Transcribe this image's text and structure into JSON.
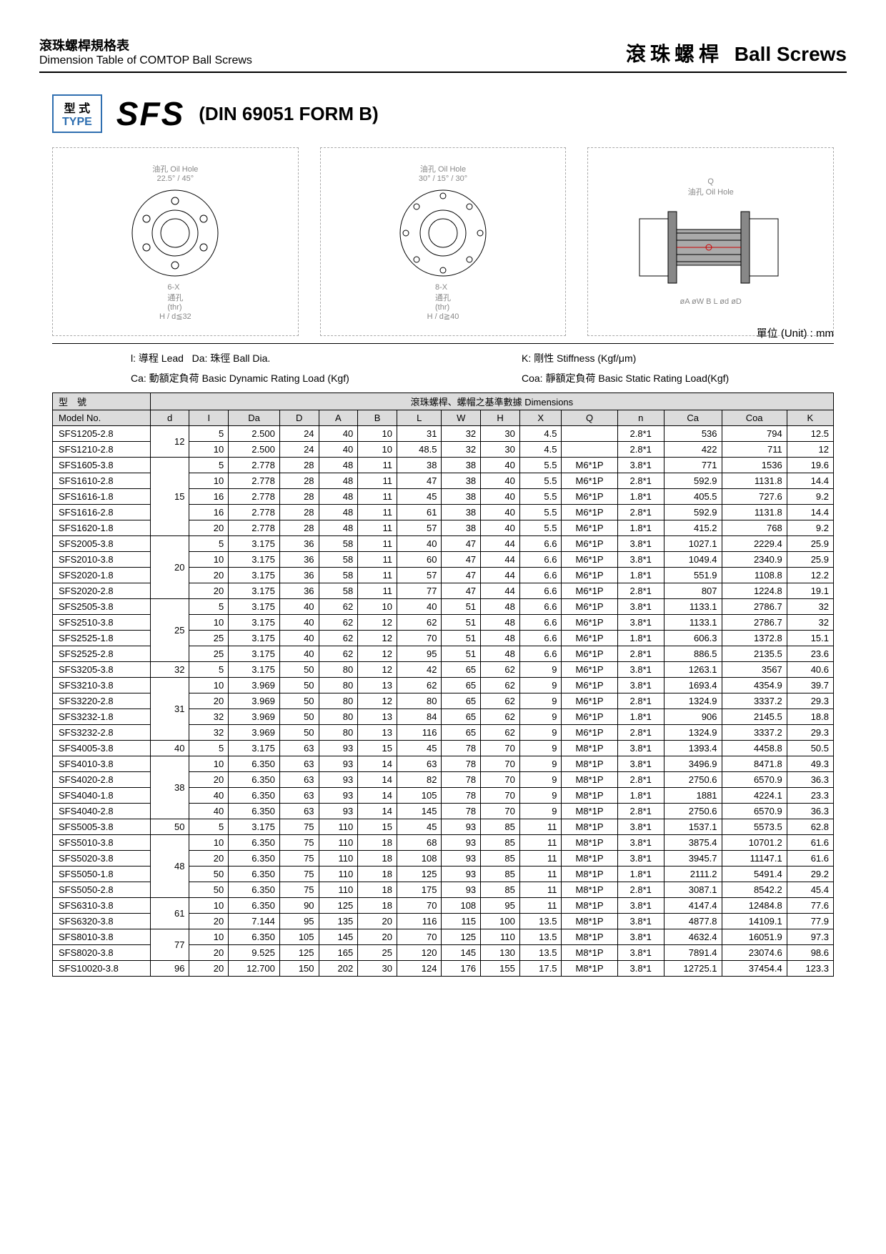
{
  "header": {
    "title_cn": "滾珠螺桿規格表",
    "title_en": "Dimension Table of COMTOP Ball Screws",
    "right_cn": "滾珠螺桿",
    "right_en": "Ball Screws"
  },
  "type_block": {
    "label_cn": "型 式",
    "label_en": "TYPE",
    "code": "SFS",
    "spec": "(DIN 69051 FORM B)"
  },
  "diagrams": {
    "d1": {
      "oil_hole_cn": "油孔",
      "oil_hole_en": "Oil Hole",
      "angle1": "22.5°",
      "angle2": "45°",
      "holes_cn": "6-X\n通孔\n(thr)",
      "dim_h": "H",
      "note": "d≦32"
    },
    "d2": {
      "oil_hole_cn": "油孔",
      "oil_hole_en": "Oil Hole",
      "angle1": "30°",
      "angle2": "15°",
      "angle3": "30°",
      "holes_cn": "8-X\n通孔\n(thr)",
      "dim_h": "H",
      "note": "d≧40"
    },
    "d3": {
      "q": "Q",
      "oil_hole": "油孔 Oil Hole",
      "dims": "øA øW B L ød øD"
    },
    "unit": "單位 (Unit) : mm"
  },
  "legend": {
    "l": "l: 導程 Lead",
    "da": "Da: 珠徑 Ball Dia.",
    "k": "K: 剛性 Stiffness (Kgf/μm)",
    "ca": "Ca: 動額定負荷 Basic Dynamic Rating Load (Kgf)",
    "coa": "Coa: 靜額定負荷 Basic Static Rating Load(Kgf)"
  },
  "table": {
    "header_model_cn": "型　號",
    "header_model_en": "Model No.",
    "header_dims": "滾珠螺桿、螺帽之基準數據 Dimensions",
    "columns": [
      "d",
      "I",
      "Da",
      "D",
      "A",
      "B",
      "L",
      "W",
      "H",
      "X",
      "Q",
      "n",
      "Ca",
      "Coa",
      "K"
    ],
    "groups": [
      {
        "d": "12",
        "rows": [
          {
            "m": "SFS1205-2.8",
            "v": [
              "5",
              "2.500",
              "24",
              "40",
              "10",
              "31",
              "32",
              "30",
              "4.5",
              "",
              "2.8*1",
              "536",
              "794",
              "12.5"
            ]
          },
          {
            "m": "SFS1210-2.8",
            "v": [
              "10",
              "2.500",
              "24",
              "40",
              "10",
              "48.5",
              "32",
              "30",
              "4.5",
              "",
              "2.8*1",
              "422",
              "711",
              "12"
            ]
          }
        ]
      },
      {
        "d": "15",
        "rows": [
          {
            "m": "SFS1605-3.8",
            "v": [
              "5",
              "2.778",
              "28",
              "48",
              "11",
              "38",
              "38",
              "40",
              "5.5",
              "M6*1P",
              "3.8*1",
              "771",
              "1536",
              "19.6"
            ]
          },
          {
            "m": "SFS1610-2.8",
            "v": [
              "10",
              "2.778",
              "28",
              "48",
              "11",
              "47",
              "38",
              "40",
              "5.5",
              "M6*1P",
              "2.8*1",
              "592.9",
              "1131.8",
              "14.4"
            ]
          },
          {
            "m": "SFS1616-1.8",
            "v": [
              "16",
              "2.778",
              "28",
              "48",
              "11",
              "45",
              "38",
              "40",
              "5.5",
              "M6*1P",
              "1.8*1",
              "405.5",
              "727.6",
              "9.2"
            ]
          },
          {
            "m": "SFS1616-2.8",
            "v": [
              "16",
              "2.778",
              "28",
              "48",
              "11",
              "61",
              "38",
              "40",
              "5.5",
              "M6*1P",
              "2.8*1",
              "592.9",
              "1131.8",
              "14.4"
            ]
          },
          {
            "m": "SFS1620-1.8",
            "v": [
              "20",
              "2.778",
              "28",
              "48",
              "11",
              "57",
              "38",
              "40",
              "5.5",
              "M6*1P",
              "1.8*1",
              "415.2",
              "768",
              "9.2"
            ]
          }
        ]
      },
      {
        "d": "20",
        "rows": [
          {
            "m": "SFS2005-3.8",
            "v": [
              "5",
              "3.175",
              "36",
              "58",
              "11",
              "40",
              "47",
              "44",
              "6.6",
              "M6*1P",
              "3.8*1",
              "1027.1",
              "2229.4",
              "25.9"
            ]
          },
          {
            "m": "SFS2010-3.8",
            "v": [
              "10",
              "3.175",
              "36",
              "58",
              "11",
              "60",
              "47",
              "44",
              "6.6",
              "M6*1P",
              "3.8*1",
              "1049.4",
              "2340.9",
              "25.9"
            ]
          },
          {
            "m": "SFS2020-1.8",
            "v": [
              "20",
              "3.175",
              "36",
              "58",
              "11",
              "57",
              "47",
              "44",
              "6.6",
              "M6*1P",
              "1.8*1",
              "551.9",
              "1108.8",
              "12.2"
            ]
          },
          {
            "m": "SFS2020-2.8",
            "v": [
              "20",
              "3.175",
              "36",
              "58",
              "11",
              "77",
              "47",
              "44",
              "6.6",
              "M6*1P",
              "2.8*1",
              "807",
              "1224.8",
              "19.1"
            ]
          }
        ]
      },
      {
        "d": "25",
        "rows": [
          {
            "m": "SFS2505-3.8",
            "v": [
              "5",
              "3.175",
              "40",
              "62",
              "10",
              "40",
              "51",
              "48",
              "6.6",
              "M6*1P",
              "3.8*1",
              "1133.1",
              "2786.7",
              "32"
            ]
          },
          {
            "m": "SFS2510-3.8",
            "v": [
              "10",
              "3.175",
              "40",
              "62",
              "12",
              "62",
              "51",
              "48",
              "6.6",
              "M6*1P",
              "3.8*1",
              "1133.1",
              "2786.7",
              "32"
            ]
          },
          {
            "m": "SFS2525-1.8",
            "v": [
              "25",
              "3.175",
              "40",
              "62",
              "12",
              "70",
              "51",
              "48",
              "6.6",
              "M6*1P",
              "1.8*1",
              "606.3",
              "1372.8",
              "15.1"
            ]
          },
          {
            "m": "SFS2525-2.8",
            "v": [
              "25",
              "3.175",
              "40",
              "62",
              "12",
              "95",
              "51",
              "48",
              "6.6",
              "M6*1P",
              "2.8*1",
              "886.5",
              "2135.5",
              "23.6"
            ]
          }
        ]
      },
      {
        "d": "32",
        "rows": [
          {
            "m": "SFS3205-3.8",
            "v": [
              "5",
              "3.175",
              "50",
              "80",
              "12",
              "42",
              "65",
              "62",
              "9",
              "M6*1P",
              "3.8*1",
              "1263.1",
              "3567",
              "40.6"
            ]
          }
        ]
      },
      {
        "d": "31",
        "rows": [
          {
            "m": "SFS3210-3.8",
            "v": [
              "10",
              "3.969",
              "50",
              "80",
              "13",
              "62",
              "65",
              "62",
              "9",
              "M6*1P",
              "3.8*1",
              "1693.4",
              "4354.9",
              "39.7"
            ]
          },
          {
            "m": "SFS3220-2.8",
            "v": [
              "20",
              "3.969",
              "50",
              "80",
              "12",
              "80",
              "65",
              "62",
              "9",
              "M6*1P",
              "2.8*1",
              "1324.9",
              "3337.2",
              "29.3"
            ]
          },
          {
            "m": "SFS3232-1.8",
            "v": [
              "32",
              "3.969",
              "50",
              "80",
              "13",
              "84",
              "65",
              "62",
              "9",
              "M6*1P",
              "1.8*1",
              "906",
              "2145.5",
              "18.8"
            ]
          },
          {
            "m": "SFS3232-2.8",
            "v": [
              "32",
              "3.969",
              "50",
              "80",
              "13",
              "116",
              "65",
              "62",
              "9",
              "M6*1P",
              "2.8*1",
              "1324.9",
              "3337.2",
              "29.3"
            ]
          }
        ]
      },
      {
        "d": "40",
        "rows": [
          {
            "m": "SFS4005-3.8",
            "v": [
              "5",
              "3.175",
              "63",
              "93",
              "15",
              "45",
              "78",
              "70",
              "9",
              "M8*1P",
              "3.8*1",
              "1393.4",
              "4458.8",
              "50.5"
            ]
          }
        ]
      },
      {
        "d": "38",
        "rows": [
          {
            "m": "SFS4010-3.8",
            "v": [
              "10",
              "6.350",
              "63",
              "93",
              "14",
              "63",
              "78",
              "70",
              "9",
              "M8*1P",
              "3.8*1",
              "3496.9",
              "8471.8",
              "49.3"
            ]
          },
          {
            "m": "SFS4020-2.8",
            "v": [
              "20",
              "6.350",
              "63",
              "93",
              "14",
              "82",
              "78",
              "70",
              "9",
              "M8*1P",
              "2.8*1",
              "2750.6",
              "6570.9",
              "36.3"
            ]
          },
          {
            "m": "SFS4040-1.8",
            "v": [
              "40",
              "6.350",
              "63",
              "93",
              "14",
              "105",
              "78",
              "70",
              "9",
              "M8*1P",
              "1.8*1",
              "1881",
              "4224.1",
              "23.3"
            ]
          },
          {
            "m": "SFS4040-2.8",
            "v": [
              "40",
              "6.350",
              "63",
              "93",
              "14",
              "145",
              "78",
              "70",
              "9",
              "M8*1P",
              "2.8*1",
              "2750.6",
              "6570.9",
              "36.3"
            ]
          }
        ]
      },
      {
        "d": "50",
        "rows": [
          {
            "m": "SFS5005-3.8",
            "v": [
              "5",
              "3.175",
              "75",
              "110",
              "15",
              "45",
              "93",
              "85",
              "11",
              "M8*1P",
              "3.8*1",
              "1537.1",
              "5573.5",
              "62.8"
            ]
          }
        ]
      },
      {
        "d": "48",
        "rows": [
          {
            "m": "SFS5010-3.8",
            "v": [
              "10",
              "6.350",
              "75",
              "110",
              "18",
              "68",
              "93",
              "85",
              "11",
              "M8*1P",
              "3.8*1",
              "3875.4",
              "10701.2",
              "61.6"
            ]
          },
          {
            "m": "SFS5020-3.8",
            "v": [
              "20",
              "6.350",
              "75",
              "110",
              "18",
              "108",
              "93",
              "85",
              "11",
              "M8*1P",
              "3.8*1",
              "3945.7",
              "11147.1",
              "61.6"
            ]
          },
          {
            "m": "SFS5050-1.8",
            "v": [
              "50",
              "6.350",
              "75",
              "110",
              "18",
              "125",
              "93",
              "85",
              "11",
              "M8*1P",
              "1.8*1",
              "2111.2",
              "5491.4",
              "29.2"
            ]
          },
          {
            "m": "SFS5050-2.8",
            "v": [
              "50",
              "6.350",
              "75",
              "110",
              "18",
              "175",
              "93",
              "85",
              "11",
              "M8*1P",
              "2.8*1",
              "3087.1",
              "8542.2",
              "45.4"
            ]
          }
        ]
      },
      {
        "d": "61",
        "rows": [
          {
            "m": "SFS6310-3.8",
            "v": [
              "10",
              "6.350",
              "90",
              "125",
              "18",
              "70",
              "108",
              "95",
              "11",
              "M8*1P",
              "3.8*1",
              "4147.4",
              "12484.8",
              "77.6"
            ]
          },
          {
            "m": "SFS6320-3.8",
            "v": [
              "20",
              "7.144",
              "95",
              "135",
              "20",
              "116",
              "115",
              "100",
              "13.5",
              "M8*1P",
              "3.8*1",
              "4877.8",
              "14109.1",
              "77.9"
            ]
          }
        ]
      },
      {
        "d": "77",
        "rows": [
          {
            "m": "SFS8010-3.8",
            "v": [
              "10",
              "6.350",
              "105",
              "145",
              "20",
              "70",
              "125",
              "110",
              "13.5",
              "M8*1P",
              "3.8*1",
              "4632.4",
              "16051.9",
              "97.3"
            ]
          },
          {
            "m": "SFS8020-3.8",
            "v": [
              "20",
              "9.525",
              "125",
              "165",
              "25",
              "120",
              "145",
              "130",
              "13.5",
              "M8*1P",
              "3.8*1",
              "7891.4",
              "23074.6",
              "98.6"
            ]
          }
        ]
      },
      {
        "d": "96",
        "rows": [
          {
            "m": "SFS10020-3.8",
            "v": [
              "20",
              "12.700",
              "150",
              "202",
              "30",
              "124",
              "176",
              "155",
              "17.5",
              "M8*1P",
              "3.8*1",
              "12725.1",
              "37454.4",
              "123.3"
            ]
          }
        ]
      }
    ],
    "col_widths": [
      "42",
      "42",
      "55",
      "42",
      "42",
      "42",
      "48",
      "42",
      "42",
      "45",
      "60",
      "50",
      "62",
      "70",
      "50"
    ]
  }
}
